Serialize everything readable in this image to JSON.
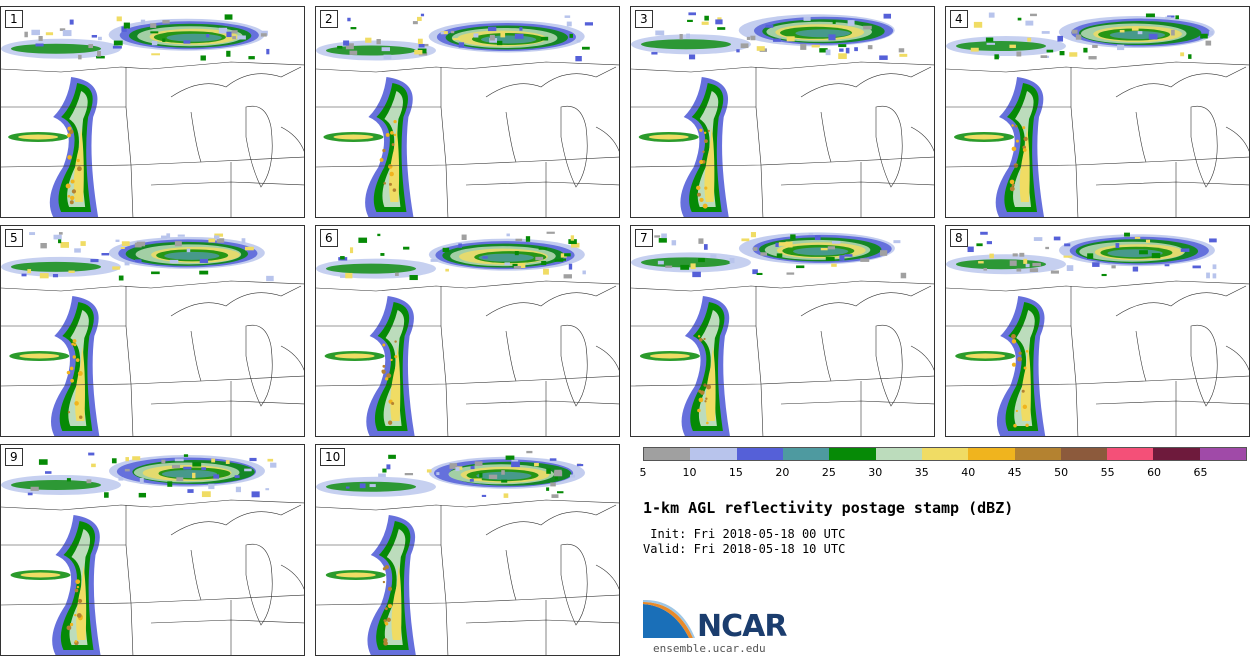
{
  "panels": [
    {
      "label": "1"
    },
    {
      "label": "2"
    },
    {
      "label": "3"
    },
    {
      "label": "4"
    },
    {
      "label": "5"
    },
    {
      "label": "6"
    },
    {
      "label": "7"
    },
    {
      "label": "8"
    },
    {
      "label": "9"
    },
    {
      "label": "10"
    }
  ],
  "colorbar": {
    "colors": [
      "#a0a0a0",
      "#b8c4ec",
      "#5560d8",
      "#4e9aa0",
      "#068a06",
      "#bcdcbc",
      "#f0dc64",
      "#f0b41e",
      "#b48230",
      "#8c5a3c",
      "#f45078",
      "#6e1a3c",
      "#a04aa8"
    ],
    "ticks": [
      "5",
      "10",
      "15",
      "20",
      "25",
      "30",
      "35",
      "40",
      "45",
      "50",
      "55",
      "60",
      "65"
    ]
  },
  "info": {
    "title": "1-km AGL reflectivity postage stamp (dBZ)",
    "init": " Init: Fri 2018-05-18 00 UTC",
    "valid": "Valid: Fri 2018-05-18 10 UTC"
  },
  "logo": {
    "text": "NCAR",
    "url": "ensemble.ucar.edu"
  }
}
